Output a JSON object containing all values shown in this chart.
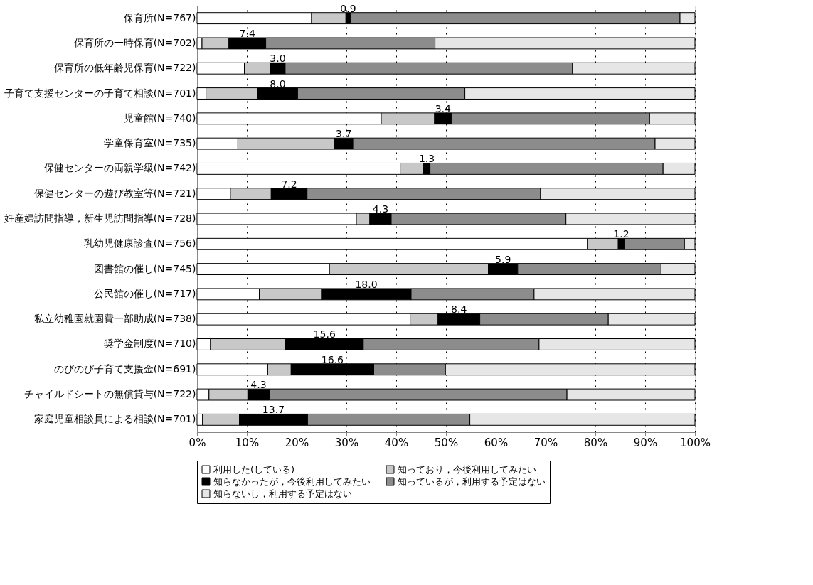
{
  "chart_data": {
    "type": "bar",
    "orientation": "horizontal",
    "stacked": true,
    "categories": [
      "保育所(N=767)",
      "保育所の一時保育(N=702)",
      "保育所の低年齢児保育(N=722)",
      "子育て支援センターの子育て相談(N=701)",
      "児童館(N=740)",
      "学童保育室(N=735)",
      "保健センターの両親学級(N=742)",
      "保健センターの遊び教室等(N=721)",
      "妊産婦訪問指導，新生児訪問指導(N=728)",
      "乳幼児健康診査(N=756)",
      "図書館の催し(N=745)",
      "公民館の催し(N=717)",
      "私立幼稚園就園費一部助成(N=738)",
      "奨学金制度(N=710)",
      "のびのび子育て支援金(N=691)",
      "チャイルドシートの無償貸与(N=722)",
      "家庭児童相談員による相談(N=701)"
    ],
    "series": [
      {
        "name": "利用した(している)",
        "color": "#ffffff",
        "values": [
          23.0,
          1.0,
          9.5,
          1.8,
          37.0,
          8.2,
          40.8,
          6.7,
          32.0,
          78.4,
          26.6,
          12.5,
          42.8,
          2.7,
          14.2,
          2.4,
          1.1
        ]
      },
      {
        "name": "知っており，今後利用してみたい",
        "color": "#c8c8c8",
        "values": [
          6.9,
          5.4,
          5.2,
          10.4,
          10.7,
          19.4,
          4.7,
          8.2,
          2.7,
          6.2,
          31.9,
          12.5,
          5.6,
          15.1,
          4.7,
          7.8,
          7.4
        ]
      },
      {
        "name": "知らなかったが，今後利用してみたい",
        "color": "#000000",
        "values": [
          0.9,
          7.4,
          3.0,
          8.0,
          3.4,
          3.7,
          1.3,
          7.2,
          4.3,
          1.2,
          5.9,
          18.0,
          8.4,
          15.6,
          16.6,
          4.3,
          13.7
        ],
        "value_labels": [
          "0.9",
          "7.4",
          "3.0",
          "8.0",
          "3.4",
          "3.7",
          "1.3",
          "7.2",
          "4.3",
          "1.2",
          "5.9",
          "18.0",
          "8.4",
          "15.6",
          "16.6",
          "4.3",
          "13.7"
        ]
      },
      {
        "name": "知っているが，利用する予定はない",
        "color": "#8c8c8c",
        "values": [
          66.2,
          34.0,
          57.7,
          33.6,
          39.8,
          60.7,
          46.8,
          46.9,
          35.1,
          12.1,
          28.8,
          24.7,
          25.8,
          35.3,
          14.4,
          59.8,
          32.6
        ]
      },
      {
        "name": "知らないし，利用する予定はない",
        "color": "#e6e6e6",
        "values": [
          3.0,
          52.2,
          24.6,
          46.2,
          9.1,
          8.0,
          6.4,
          31.0,
          25.9,
          2.1,
          6.8,
          32.3,
          17.4,
          31.3,
          50.1,
          25.7,
          45.2
        ]
      }
    ],
    "xlim": [
      0,
      100
    ],
    "xticks": [
      {
        "value": 0,
        "label": "0%"
      },
      {
        "value": 10,
        "label": "10%"
      },
      {
        "value": 20,
        "label": "20%"
      },
      {
        "value": 30,
        "label": "30%"
      },
      {
        "value": 40,
        "label": "40%"
      },
      {
        "value": 50,
        "label": "50%"
      },
      {
        "value": 60,
        "label": "60%"
      },
      {
        "value": 70,
        "label": "70%"
      },
      {
        "value": 80,
        "label": "80%"
      },
      {
        "value": 90,
        "label": "90%"
      },
      {
        "value": 100,
        "label": "100%"
      }
    ],
    "grid": "x",
    "legend": "bottom"
  }
}
